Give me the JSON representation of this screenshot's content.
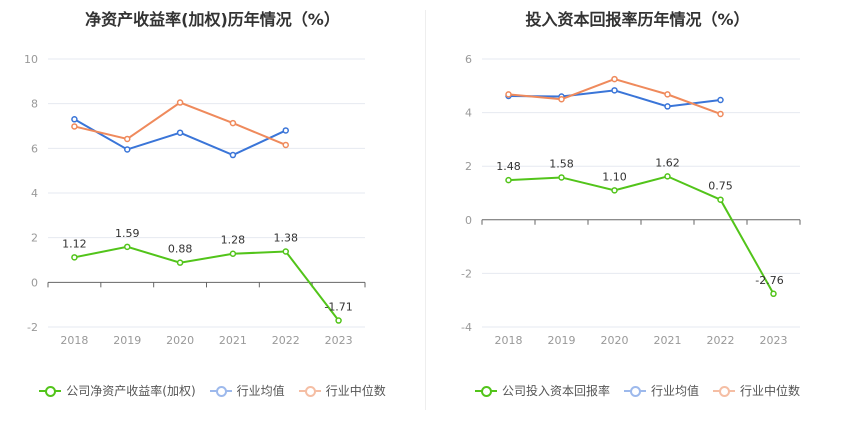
{
  "chart_data": [
    {
      "type": "line",
      "title": "净资产收益率(加权)历年情况（%）",
      "categories": [
        "2018",
        "2019",
        "2020",
        "2021",
        "2022",
        "2023"
      ],
      "ylim": [
        -2,
        10
      ],
      "yticks": [
        -2,
        0,
        2,
        4,
        6,
        8,
        10
      ],
      "grid": true,
      "legend": "bottom",
      "series": [
        {
          "name": "公司净资产收益率(加权)",
          "color": "#52c41a",
          "values": [
            1.12,
            1.59,
            0.88,
            1.28,
            1.38,
            -1.71
          ],
          "labels": [
            "1.12",
            "1.59",
            "0.88",
            "1.28",
            "1.38",
            "-1.71"
          ]
        },
        {
          "name": "行业均值",
          "color": "#3a75d8",
          "values": [
            7.3,
            5.95,
            6.7,
            5.7,
            6.8,
            null
          ]
        },
        {
          "name": "行业中位数",
          "color": "#ef8a5c",
          "values": [
            6.98,
            6.42,
            8.05,
            7.13,
            6.15,
            null
          ]
        }
      ]
    },
    {
      "type": "line",
      "title": "投入资本回报率历年情况（%）",
      "categories": [
        "2018",
        "2019",
        "2020",
        "2021",
        "2022",
        "2023"
      ],
      "ylim": [
        -4,
        6
      ],
      "yticks": [
        -4,
        -2,
        0,
        2,
        4,
        6
      ],
      "grid": true,
      "legend": "bottom",
      "series": [
        {
          "name": "公司投入资本回报率",
          "color": "#52c41a",
          "values": [
            1.48,
            1.58,
            1.1,
            1.62,
            0.75,
            -2.76
          ],
          "labels": [
            "1.48",
            "1.58",
            "1.10",
            "1.62",
            "0.75",
            "-2.76"
          ]
        },
        {
          "name": "行业均值",
          "color": "#3a75d8",
          "values": [
            4.62,
            4.6,
            4.83,
            4.23,
            4.47,
            null
          ]
        },
        {
          "name": "行业中位数",
          "color": "#ef8a5c",
          "values": [
            4.68,
            4.5,
            5.25,
            4.68,
            3.95,
            null
          ]
        }
      ]
    }
  ]
}
